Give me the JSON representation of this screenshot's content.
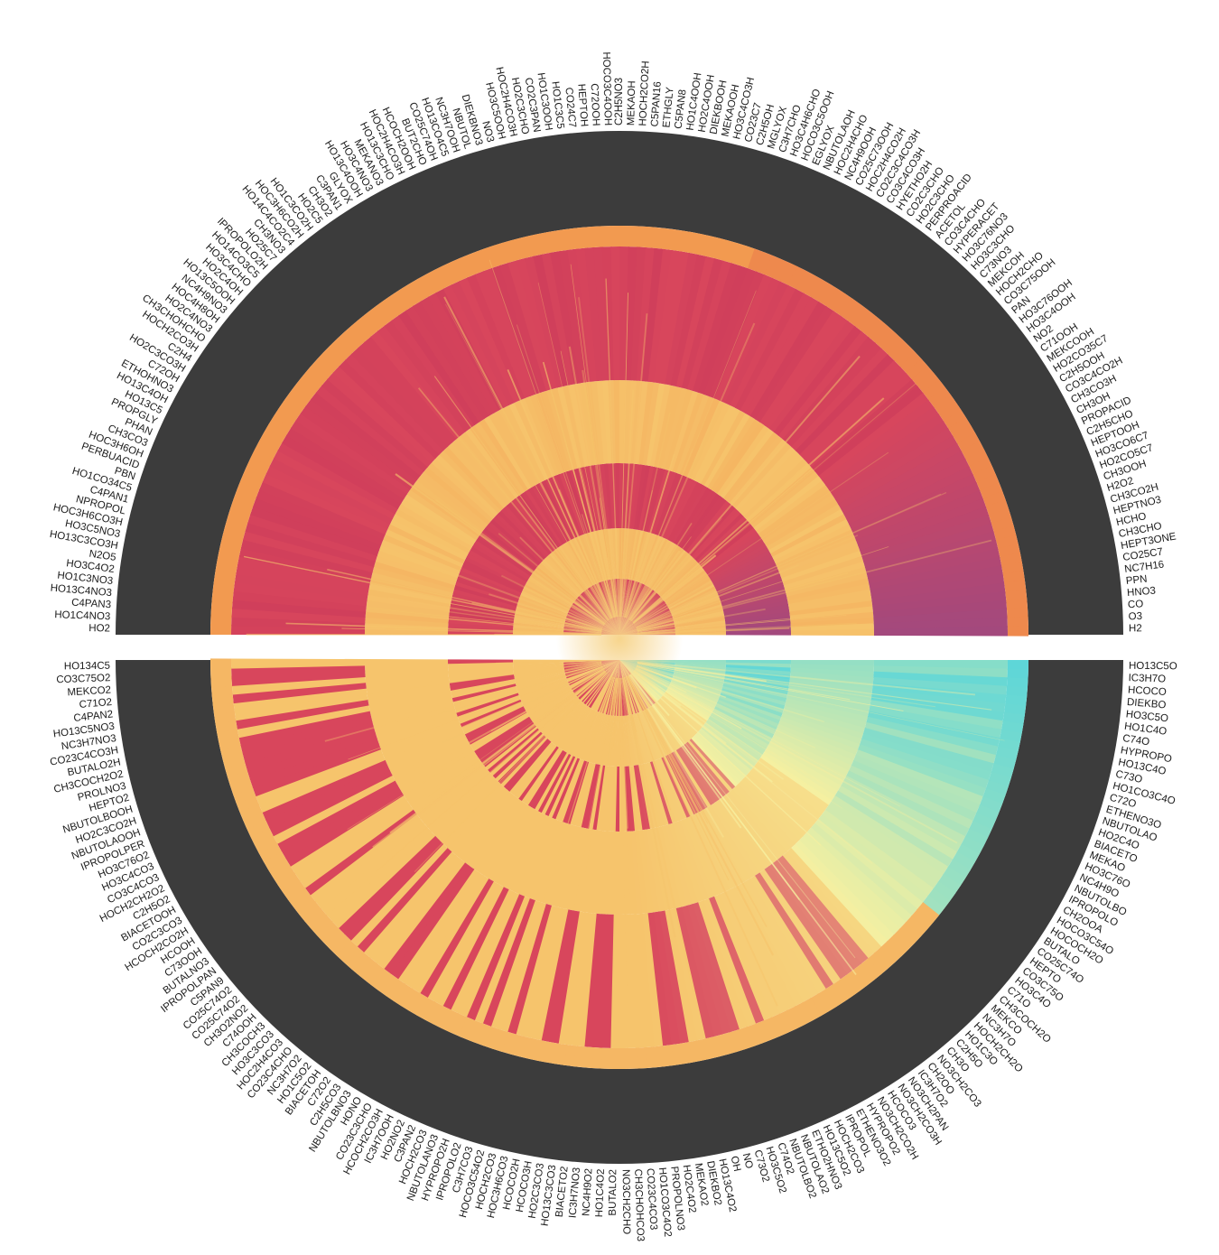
{
  "chart_data": {
    "type": "radial-heatmap",
    "rings": 5,
    "colors": {
      "background_ring": "#3c3c3c",
      "outer_band": "#f29a50",
      "crimson": "#d8465c",
      "light_band": "#f6c46c",
      "pale_yellow": "#f7f0a0",
      "cyan": "#5ed6d8",
      "purple": "#8a4a8c"
    },
    "labels_upper": [
      "H2",
      "O3",
      "CO",
      "HNO3",
      "PPN",
      "NC7H16",
      "CO25C7",
      "HEPT3ONE",
      "CH3CHO",
      "HCHO",
      "HEPTNO3",
      "CH3CO2H",
      "H2O2",
      "CH3OOH",
      "HO2CO5C7",
      "HO3CO6C7",
      "HEPTOOH",
      "C2H5CHO",
      "PROPACID",
      "CH3OH",
      "CH3CO3H",
      "CO3C4CO2H",
      "C2H5OOH",
      "HO2CO35C7",
      "MEKCOOH",
      "C71OOH",
      "NO2",
      "HO3C4OOH",
      "HO3C76OOH",
      "PAN",
      "CO3C75OOH",
      "HOCH2CHO",
      "MEKCOH",
      "C73NO3",
      "HO3C3CHO",
      "HO3C76NO3",
      "HYPERACET",
      "CO3C4CHO",
      "ACETOL",
      "PERPROACID",
      "HO2C3CHO",
      "CO2C3CHO",
      "HYETHO2H",
      "CO3C4CO3H",
      "CO2C3C4CO3H",
      "HOC2H4CO2H",
      "CO25C73OOH",
      "NC4H9OOH",
      "HOC2H4CHO",
      "NBUTOLAOH",
      "EGLYOX",
      "HOCO3C5OOH",
      "HO3C4H6CHO",
      "C3H7CHO",
      "MGLYOX",
      "C2H5OH",
      "CO23C7",
      "HO3C4CO3H",
      "MEKAOOH",
      "DIEKBOOH",
      "HO2C4OOH",
      "HO1C4OOH",
      "C5PAN8",
      "ETHGLY",
      "C5PAN16",
      "HOCH2CO2H",
      "MEKAOH",
      "C2H5NO3",
      "HOCO3C4OOH",
      "C72OOH",
      "HEPTOH",
      "CO24C7",
      "HO1C3C5",
      "HO1C3OOH",
      "CO2C3PAN",
      "HO2C3CHO",
      "HOC2H4CO3H",
      "HO3C5OOH",
      "NO3",
      "DIEKBNO3",
      "NBUTOL",
      "NC3H7OOH",
      "HO13CO4C5",
      "CO25C74OH",
      "BUT2CHO",
      "HCOCH2OOH",
      "HOC2H4CO3H",
      "HO13C3CHO",
      "MEKANO3",
      "HO3C4NO3",
      "HO13C4OOH",
      "GLYOX",
      "C3PAN1",
      "CH3O2",
      "HO2C5",
      "HO1C3CO2H",
      "HOC3H6CO2H",
      "HO14C4CO2C4",
      "CH3NO3",
      "HO25C7",
      "IPROPOLO2H",
      "HO14CO3C5",
      "HO3C4CHO",
      "HO2C4OH",
      "HO13C5OOH",
      "NC4H9NO3",
      "HOC4H8OH",
      "HO2C4NO3",
      "CH3CHOHCHO",
      "HOCH2CO3H",
      "C2H4",
      "HO2C3CO3H",
      "C72OH",
      "ETHOHNO3",
      "HO13C4OH",
      "HO13C5",
      "PROPGLY",
      "PHAN",
      "CH3CO3",
      "HOC3H6OH",
      "PERBUACID",
      "PBN",
      "HO1CO34C5",
      "C4PAN1",
      "NPROPOL",
      "HOC3H6CO3H",
      "HO3C5NO3",
      "HO13C3CO3H",
      "N2O5",
      "HO3C4O2",
      "HO1C3NO3",
      "HO13C4NO3",
      "C4PAN3",
      "HO1C4NO3",
      "HO2"
    ],
    "labels_lower": [
      "HO13C5O",
      "IC3H7O",
      "HCOCO",
      "DIEKBO",
      "HO3C5O",
      "HO1C4O",
      "C74O",
      "HYPROPO",
      "HO13C4O",
      "C73O",
      "HO1CO3C4O",
      "C72O",
      "ETHENO3O",
      "NBUTOLAO",
      "HO2C4O",
      "BIACETO",
      "MEKAO",
      "HO3C76O",
      "NC4H9O",
      "NBUTOLBO",
      "IPROPOLO",
      "CH2OOA",
      "HOCO3C54O",
      "HOCOCH2O",
      "BUTALO",
      "CO25C74O",
      "HEPTO",
      "CO3C75O",
      "HO3C4O",
      "C71O",
      "CH3COCH2O",
      "MEKCO",
      "NC3H7O",
      "HOCH2CH2O",
      "HO1C3O",
      "C2H5O",
      "CH3O",
      "NO3CH2CO3",
      "CH2OO",
      "IC3H7O2",
      "NO3CH2PAN",
      "NO3CH2CO3H",
      "HCOCO3",
      "NO3CH2CO2H",
      "HYPROPO2",
      "ETHENO3O2",
      "IPROPOL",
      "HOCH2CO3",
      "HO13C5O2",
      "ETHO2HNO3",
      "NBUTOLAO2",
      "NBUTOLBO2",
      "C74O2",
      "HO3C5O2",
      "C73O2",
      "NO",
      "OH",
      "HO13C4O2",
      "DIEKBO2",
      "MEKAO2",
      "HO2C4O2",
      "PROPOLNO3",
      "HO1CO3C4O2",
      "CO23C4CO3",
      "CH3CHOHCO3",
      "NO3CH2CHO",
      "BUTALO2",
      "HO1C4O2",
      "NC4H9O2",
      "IC3H7NO3",
      "BIACETO2",
      "HO13C3CO3",
      "HO2C3CO3",
      "HCOCO3H",
      "HCOCO2H",
      "HOC3H6CO3",
      "HOCH2CO3",
      "HOCO3C54O2",
      "C3H7CO3",
      "IPROPOLO2",
      "HYPROPO2H",
      "NBUTOLANO3",
      "HOCH2CO3",
      "C3PAN2",
      "HO2NO2",
      "IC3H7OOH",
      "HCOCH2CO3H",
      "CO23C3CHO",
      "HONO",
      "NBUTOLBNO3",
      "C2H5CO3",
      "C72O2",
      "BIACETOH",
      "HO1C5O2",
      "NC3H7O2",
      "CO23C4CHO",
      "HOC2H4CO3",
      "HO3C3CO3",
      "CH3COCH3",
      "C74OOH",
      "CH3O2NO2",
      "CO25C74O2",
      "CO25C74O2",
      "C5PAN9",
      "IPROPOLPAN",
      "BUTALNO3",
      "C73OOH",
      "HCOOH",
      "HCOCH2CO2H",
      "CO2C3CO3",
      "BIACETOOH",
      "C2H5O2",
      "HOCH2CH2O2",
      "CO3C4CO3",
      "HO3C4CO3",
      "HO3C76O2",
      "IPROPOLPER",
      "NBUTOLAOOH",
      "HO2C3CO2H",
      "NBUTOLBOOH",
      "HEPTO2",
      "PROLNO3",
      "CH3COCH2O2",
      "BUTALO2H",
      "CO23C4CO3H",
      "NC3H7NO3",
      "HO13C5NO3",
      "C4PAN2",
      "C71O2",
      "MEKCO2",
      "CO3C75O2",
      "HO134C5"
    ]
  }
}
